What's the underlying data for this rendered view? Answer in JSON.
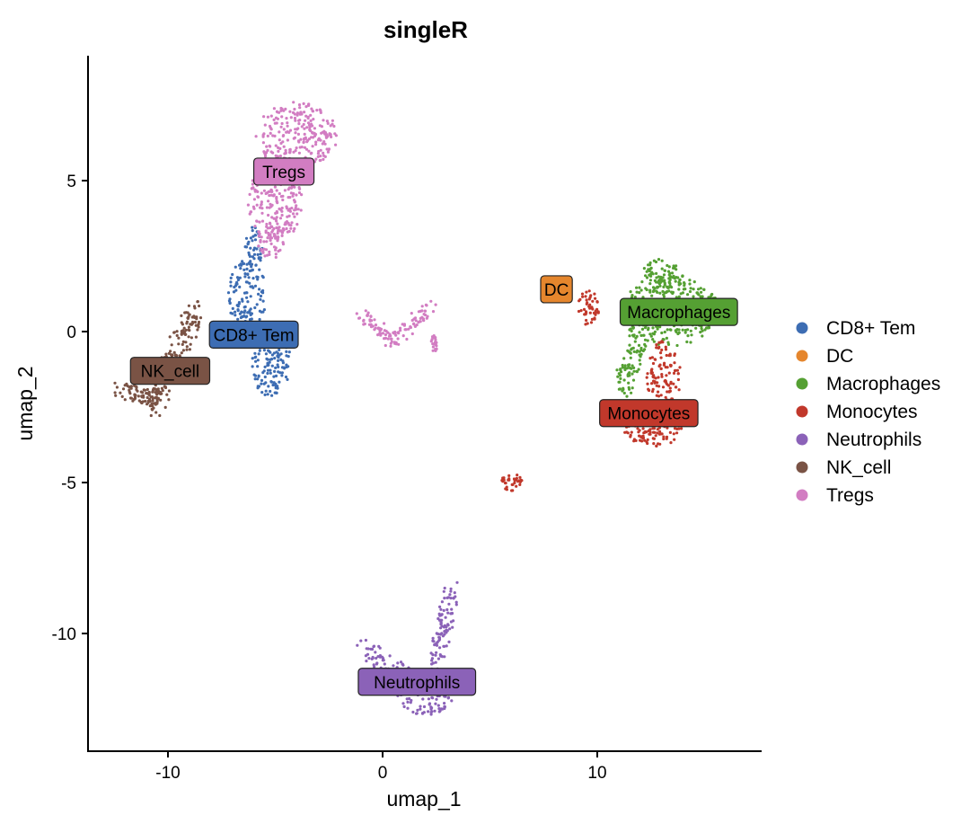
{
  "chart_data": {
    "type": "scatter",
    "title": "singleR",
    "xlabel": "umap_1",
    "ylabel": "umap_2",
    "xlim": [
      -13.7,
      17.7
    ],
    "ylim": [
      -13.9,
      9.1
    ],
    "xticks": [
      -10,
      0,
      10
    ],
    "yticks": [
      -10,
      -5,
      0,
      5
    ],
    "grid": false,
    "legend_position": "right",
    "series": [
      {
        "name": "CD8+ Tem",
        "color": "#3D6DB3",
        "label_at": [
          -6,
          -0.1
        ],
        "regions": [
          {
            "ellipse": [
              -6.3,
              1.2,
              0.9,
              1.2
            ]
          },
          {
            "ellipse": [
              -5.2,
              -1,
              0.9,
              1.2
            ]
          },
          {
            "ellipse": [
              -6,
              2.8,
              0.4,
              0.7
            ]
          }
        ]
      },
      {
        "name": "DC",
        "color": "#E5862D",
        "label_at": [
          8.1,
          1.4
        ],
        "regions": []
      },
      {
        "name": "Macrophages",
        "color": "#55A033",
        "label_at": [
          13.8,
          0.65
        ],
        "regions": [
          {
            "ellipse": [
              13.4,
              0.7,
              2.3,
              1.2
            ]
          },
          {
            "ellipse": [
              13,
              1.8,
              1.0,
              0.6
            ]
          },
          {
            "line": [
              12,
              -0.3,
              11.1,
              -1.9,
              0.4
            ]
          }
        ]
      },
      {
        "name": "Monocytes",
        "color": "#C1382B",
        "label_at": [
          12.4,
          -2.7
        ],
        "regions": [
          {
            "ellipse": [
              13.1,
              -1.5,
              0.8,
              1.2
            ]
          },
          {
            "ellipse": [
              12.6,
              -3.2,
              1.4,
              0.6
            ]
          },
          {
            "ellipse": [
              9.6,
              0.8,
              0.5,
              0.6
            ]
          },
          {
            "ellipse": [
              6,
              -5,
              0.5,
              0.3
            ]
          }
        ]
      },
      {
        "name": "Neutrophils",
        "color": "#8B62B8",
        "label_at": [
          1.6,
          -11.6
        ],
        "regions": [
          {
            "ellipse": [
              2,
              -12,
              1.3,
              0.7
            ]
          },
          {
            "line": [
              -1,
              -10.5,
              1.2,
              -11.6,
              0.35
            ]
          },
          {
            "line": [
              3.2,
              -8.5,
              2.5,
              -11,
              0.35
            ]
          }
        ]
      },
      {
        "name": "NK_cell",
        "color": "#7A5345",
        "label_at": [
          -9.9,
          -1.3
        ],
        "regions": [
          {
            "line": [
              -8.7,
              0.7,
              -10.8,
              -2.6,
              0.45
            ]
          },
          {
            "line": [
              -12.3,
              -1.9,
              -10.5,
              -2.3,
              0.3
            ]
          }
        ]
      },
      {
        "name": "Tregs",
        "color": "#D27DC2",
        "label_at": [
          -4.6,
          5.3
        ],
        "regions": [
          {
            "ellipse": [
              -4,
              6.5,
              1.9,
              1.1
            ]
          },
          {
            "ellipse": [
              -5,
              4.3,
              1.3,
              1.3
            ]
          },
          {
            "ellipse": [
              -5.2,
              3,
              0.6,
              0.6
            ]
          },
          {
            "line": [
              -1,
              0.5,
              0.5,
              -0.3,
              0.25
            ]
          },
          {
            "line": [
              0.5,
              -0.3,
              2.3,
              0.8,
              0.25
            ]
          },
          {
            "ellipse": [
              2.4,
              -0.4,
              0.15,
              0.3
            ]
          }
        ]
      }
    ]
  }
}
